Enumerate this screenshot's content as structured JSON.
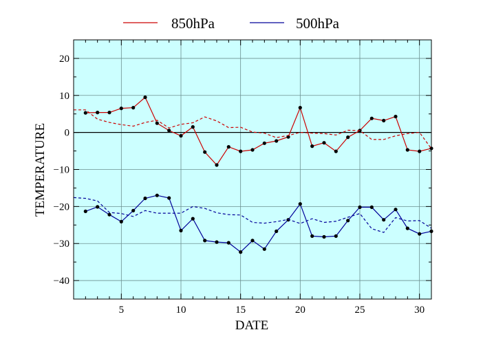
{
  "chart_data": {
    "type": "line",
    "xlabel": "DATE",
    "ylabel": "TEMPERATURE",
    "xlim": [
      1,
      31
    ],
    "ylim": [
      -45,
      25
    ],
    "x_ticks": [
      5,
      10,
      15,
      20,
      25,
      30
    ],
    "y_ticks": [
      20,
      10,
      0,
      -10,
      -20,
      -30,
      -40
    ],
    "grid": true,
    "zero_line": true,
    "plot_background": "#ccffff",
    "legend_position": "top",
    "legend": [
      {
        "label": "850hPa",
        "color": "#cc0000"
      },
      {
        "label": "500hPa",
        "color": "#000099"
      }
    ],
    "series": [
      {
        "name": "850hPa",
        "style": "solid-with-markers",
        "color": "#cc0000",
        "x": [
          2,
          3,
          4,
          5,
          6,
          7,
          8,
          9,
          10,
          11,
          12,
          13,
          14,
          15,
          16,
          17,
          18,
          19,
          20,
          21,
          22,
          23,
          24,
          25,
          26,
          27,
          28,
          29,
          30,
          31
        ],
        "values": [
          5.3,
          5.4,
          5.4,
          6.5,
          6.7,
          9.5,
          2.5,
          0.5,
          -0.9,
          1.5,
          -5.3,
          -8.8,
          -3.9,
          -5.1,
          -4.7,
          -2.9,
          -2.3,
          -1.2,
          6.7,
          -3.7,
          -2.8,
          -5.1,
          -1.3,
          0.5,
          3.8,
          3.2,
          4.3,
          -4.7,
          -5.1,
          -4.3
        ]
      },
      {
        "name": "850hPa",
        "style": "dashed",
        "color": "#cc0000",
        "x": [
          1,
          2,
          3,
          4,
          5,
          6,
          7,
          8,
          9,
          10,
          11,
          12,
          13,
          14,
          15,
          16,
          17,
          18,
          19,
          20,
          21,
          22,
          23,
          24,
          25,
          26,
          27,
          28,
          29,
          30,
          31
        ],
        "values": [
          6.1,
          6.1,
          3.6,
          2.7,
          2.1,
          1.7,
          2.7,
          3.3,
          1.2,
          2.2,
          2.6,
          4.2,
          3.1,
          1.3,
          1.4,
          0.1,
          -0.2,
          -1.4,
          -0.8,
          0.0,
          -0.2,
          -0.3,
          -0.7,
          0.6,
          0.5,
          -1.9,
          -1.9,
          -0.9,
          -0.3,
          0.0,
          -4.4
        ]
      },
      {
        "name": "500hPa",
        "style": "solid-with-markers",
        "color": "#000099",
        "x": [
          2,
          3,
          4,
          5,
          6,
          7,
          8,
          9,
          10,
          11,
          12,
          13,
          14,
          15,
          16,
          17,
          18,
          19,
          20,
          21,
          22,
          23,
          24,
          25,
          26,
          27,
          28,
          29,
          30,
          31
        ],
        "values": [
          -21.3,
          -20.1,
          -22.2,
          -24.1,
          -21.1,
          -17.8,
          -17.0,
          -17.7,
          -26.5,
          -23.3,
          -29.2,
          -29.6,
          -29.8,
          -32.3,
          -29.2,
          -31.5,
          -26.7,
          -23.6,
          -19.3,
          -28.0,
          -28.2,
          -28.0,
          -23.8,
          -20.2,
          -20.2,
          -23.6,
          -20.8,
          -25.9,
          -27.4,
          -26.7
        ]
      },
      {
        "name": "500hPa",
        "style": "dashed",
        "color": "#000099",
        "x": [
          1,
          2,
          3,
          4,
          5,
          6,
          7,
          8,
          9,
          10,
          11,
          12,
          13,
          14,
          15,
          16,
          17,
          18,
          19,
          20,
          21,
          22,
          23,
          24,
          25,
          26,
          27,
          28,
          29,
          30,
          31
        ],
        "values": [
          -17.6,
          -17.8,
          -18.5,
          -21.6,
          -21.9,
          -22.7,
          -21.1,
          -21.8,
          -21.8,
          -21.8,
          -20.0,
          -20.5,
          -21.7,
          -22.2,
          -22.3,
          -24.3,
          -24.5,
          -24.1,
          -23.5,
          -24.6,
          -23.3,
          -24.3,
          -24.0,
          -22.9,
          -21.9,
          -26.0,
          -27.0,
          -23.0,
          -23.9,
          -23.8,
          -25.9
        ]
      }
    ]
  }
}
